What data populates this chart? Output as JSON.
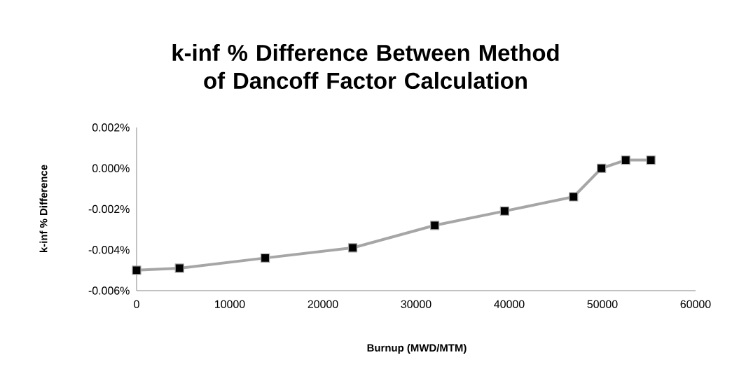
{
  "chart_data": {
    "type": "line",
    "title": "k-inf  % Difference Between Method of Dancoff Factor Calculation",
    "xlabel": "Burnup (MWD/MTM)",
    "ylabel": "k-inf  % Difference",
    "x": [
      0,
      4600,
      13800,
      23200,
      32000,
      39500,
      46900,
      49900,
      52500,
      55200
    ],
    "series": [
      {
        "color": "#a6a6a6",
        "values": [
          -0.005,
          -0.0049,
          -0.0044,
          -0.0039,
          -0.0028,
          -0.0021,
          -0.0014,
          0.0,
          0.0004,
          0.0004
        ]
      }
    ],
    "xlim": [
      0,
      60000
    ],
    "xticks": [
      0,
      10000,
      20000,
      30000,
      40000,
      50000,
      60000
    ],
    "ylim": [
      -0.006,
      0.002
    ],
    "yticks": [
      {
        "value": -0.006,
        "label": "-0.006%"
      },
      {
        "value": -0.004,
        "label": "-0.004%"
      },
      {
        "value": -0.002,
        "label": "-0.002%"
      },
      {
        "value": 0,
        "label": "0.000%"
      },
      {
        "value": 0.002,
        "label": "0.002%"
      }
    ],
    "grid": false,
    "marker": "square",
    "line_style": "solid"
  }
}
